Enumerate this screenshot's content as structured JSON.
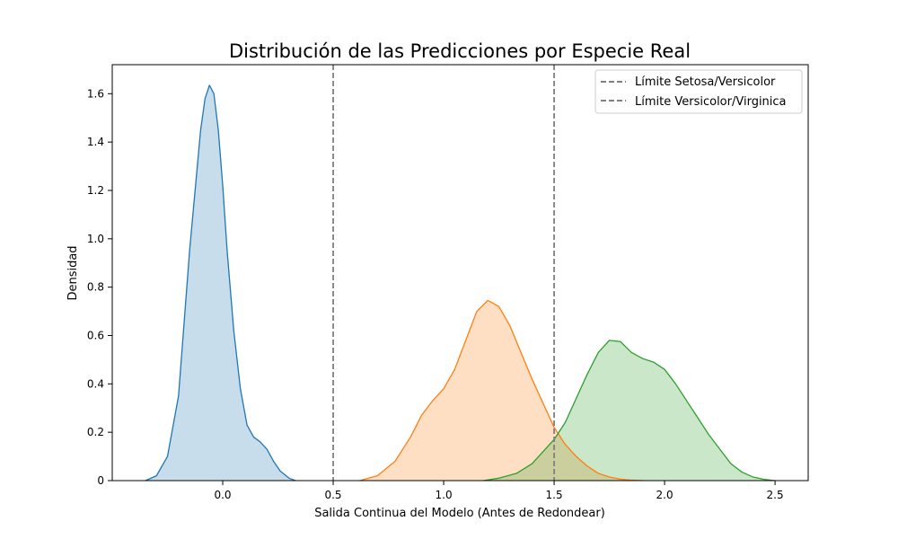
{
  "chart_data": {
    "type": "area",
    "title": "Distribución de las Predicciones por Especie Real",
    "xlabel": "Salida Continua del Modelo (Antes de Redondear)",
    "ylabel": "Densidad",
    "xlim": [
      -0.5,
      2.65
    ],
    "ylim": [
      0,
      1.72
    ],
    "xticks": [
      0.0,
      0.5,
      1.0,
      1.5,
      2.0,
      2.5
    ],
    "xtick_labels": [
      "0.0",
      "0.5",
      "1.0",
      "1.5",
      "2.0",
      "2.5"
    ],
    "yticks": [
      0,
      0.2,
      0.4,
      0.6,
      0.8,
      1.0,
      1.2,
      1.4,
      1.6
    ],
    "ytick_labels": [
      "0",
      "0.2",
      "0.4",
      "0.6",
      "0.8",
      "1.0",
      "1.2",
      "1.4",
      "1.6"
    ],
    "grid": false,
    "legend_position": "top-right",
    "reference_lines": [
      {
        "x": 0.5,
        "label": "Límite Setosa/Versicolor",
        "color": "#808080",
        "style": "dashed"
      },
      {
        "x": 1.5,
        "label": "Límite Versicolor/Virginica",
        "color": "#808080",
        "style": "dashed"
      }
    ],
    "series": [
      {
        "line_color": "#1f77b4",
        "fill_color": "#1f77b4",
        "x": [
          -0.35,
          -0.3,
          -0.25,
          -0.2,
          -0.15,
          -0.1,
          -0.08,
          -0.06,
          -0.04,
          -0.02,
          0.0,
          0.02,
          0.05,
          0.08,
          0.11,
          0.14,
          0.17,
          0.2,
          0.23,
          0.26,
          0.3,
          0.33
        ],
        "y": [
          0.0,
          0.02,
          0.1,
          0.35,
          0.95,
          1.45,
          1.58,
          1.635,
          1.6,
          1.45,
          1.22,
          0.95,
          0.62,
          0.38,
          0.23,
          0.18,
          0.16,
          0.13,
          0.08,
          0.04,
          0.01,
          0.0
        ]
      },
      {
        "line_color": "#ff7f0e",
        "fill_color": "#ff7f0e",
        "x": [
          0.62,
          0.7,
          0.78,
          0.85,
          0.9,
          0.95,
          1.0,
          1.05,
          1.1,
          1.15,
          1.2,
          1.25,
          1.3,
          1.35,
          1.4,
          1.45,
          1.5,
          1.55,
          1.6,
          1.65,
          1.7,
          1.75,
          1.8,
          1.85,
          1.9
        ],
        "y": [
          0.0,
          0.02,
          0.08,
          0.18,
          0.27,
          0.33,
          0.38,
          0.46,
          0.58,
          0.7,
          0.745,
          0.72,
          0.64,
          0.53,
          0.42,
          0.32,
          0.22,
          0.15,
          0.1,
          0.06,
          0.03,
          0.015,
          0.006,
          0.002,
          0.0
        ]
      },
      {
        "line_color": "#2ca02c",
        "fill_color": "#2ca02c",
        "x": [
          1.18,
          1.25,
          1.33,
          1.4,
          1.45,
          1.5,
          1.55,
          1.6,
          1.65,
          1.7,
          1.75,
          1.8,
          1.85,
          1.9,
          1.95,
          2.0,
          2.05,
          2.1,
          2.15,
          2.2,
          2.25,
          2.3,
          2.35,
          2.4,
          2.45,
          2.5
        ],
        "y": [
          0.0,
          0.01,
          0.03,
          0.07,
          0.12,
          0.17,
          0.24,
          0.34,
          0.44,
          0.53,
          0.58,
          0.575,
          0.53,
          0.505,
          0.49,
          0.46,
          0.4,
          0.33,
          0.26,
          0.19,
          0.13,
          0.07,
          0.035,
          0.015,
          0.005,
          0.0
        ]
      }
    ]
  }
}
